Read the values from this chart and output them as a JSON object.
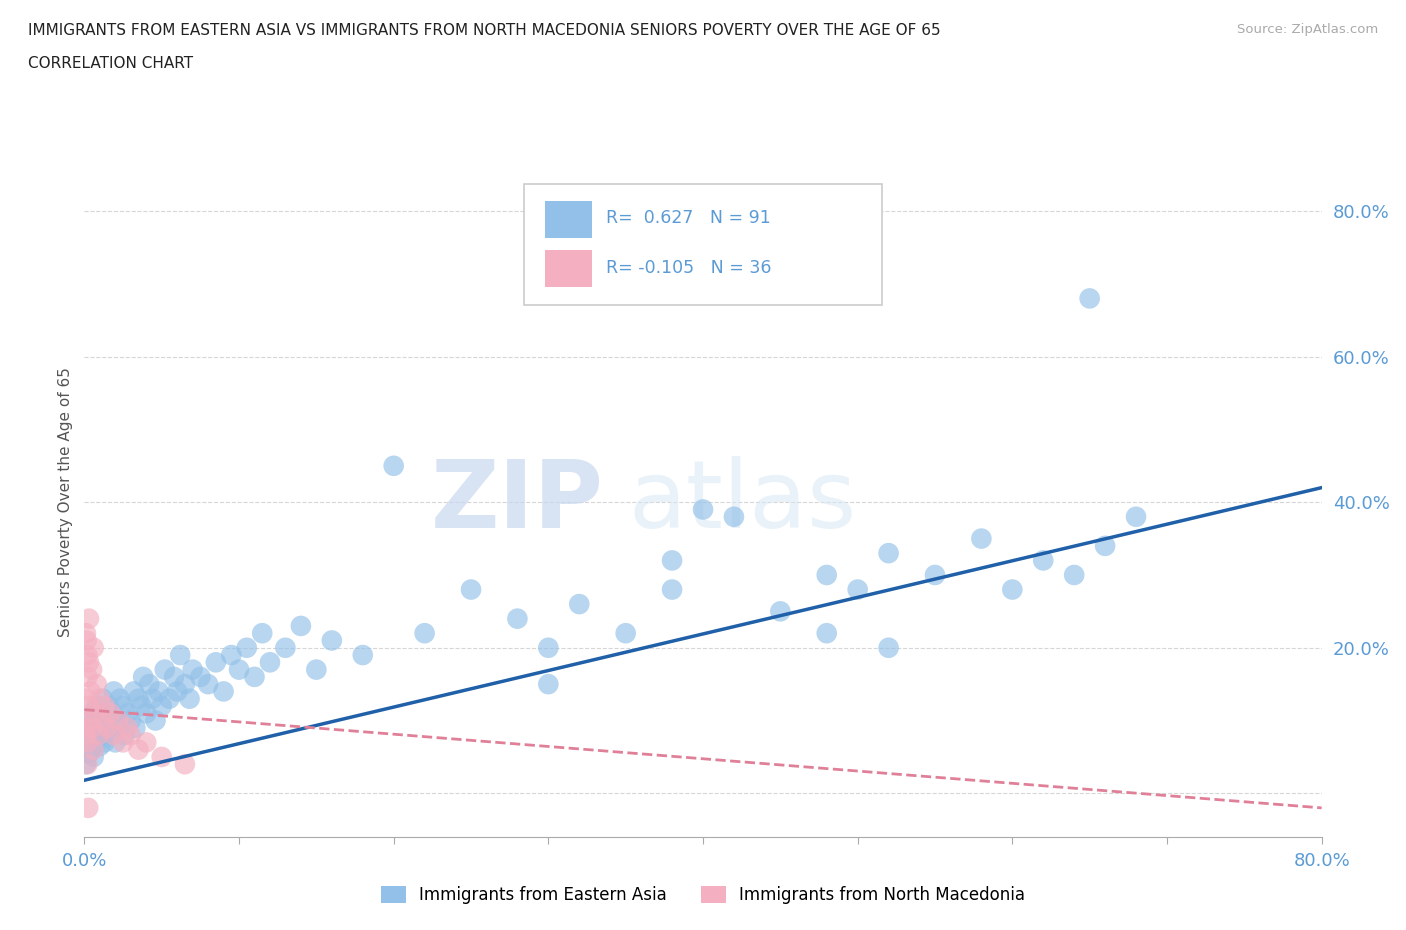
{
  "title_line1": "IMMIGRANTS FROM EASTERN ASIA VS IMMIGRANTS FROM NORTH MACEDONIA SENIORS POVERTY OVER THE AGE OF 65",
  "title_line2": "CORRELATION CHART",
  "source_text": "Source: ZipAtlas.com",
  "ylabel": "Seniors Poverty Over the Age of 65",
  "xlim": [
    0.0,
    0.8
  ],
  "ylim": [
    -0.06,
    0.86
  ],
  "blue_color": "#92c0e8",
  "pink_color": "#f4afc0",
  "blue_line_color": "#2060a8",
  "pink_line_color": "#e08098",
  "R_blue": 0.627,
  "N_blue": 91,
  "R_pink": -0.105,
  "N_pink": 36,
  "watermark_zip": "ZIP",
  "watermark_atlas": "atlas",
  "legend1": "Immigrants from Eastern Asia",
  "legend2": "Immigrants from North Macedonia",
  "blue_line_x0": 0.0,
  "blue_line_y0": 0.018,
  "blue_line_x1": 0.8,
  "blue_line_y1": 0.42,
  "pink_line_x0": 0.0,
  "pink_line_y0": 0.115,
  "pink_line_x1": 0.8,
  "pink_line_y1": -0.02,
  "blue_scatter_x": [
    0.001,
    0.002,
    0.003,
    0.004,
    0.004,
    0.005,
    0.005,
    0.006,
    0.007,
    0.008,
    0.008,
    0.009,
    0.01,
    0.01,
    0.012,
    0.012,
    0.013,
    0.014,
    0.015,
    0.016,
    0.017,
    0.018,
    0.019,
    0.02,
    0.021,
    0.022,
    0.023,
    0.025,
    0.026,
    0.028,
    0.03,
    0.032,
    0.033,
    0.035,
    0.037,
    0.038,
    0.04,
    0.042,
    0.044,
    0.046,
    0.048,
    0.05,
    0.052,
    0.055,
    0.058,
    0.06,
    0.062,
    0.065,
    0.068,
    0.07,
    0.075,
    0.08,
    0.085,
    0.09,
    0.095,
    0.1,
    0.105,
    0.11,
    0.115,
    0.12,
    0.13,
    0.14,
    0.15,
    0.16,
    0.18,
    0.2,
    0.22,
    0.25,
    0.28,
    0.3,
    0.32,
    0.35,
    0.38,
    0.4,
    0.45,
    0.48,
    0.5,
    0.52,
    0.55,
    0.58,
    0.6,
    0.62,
    0.64,
    0.66,
    0.68,
    0.52,
    0.42,
    0.38,
    0.3,
    0.65,
    0.48
  ],
  "blue_scatter_y": [
    0.04,
    0.07,
    0.055,
    0.09,
    0.06,
    0.08,
    0.11,
    0.05,
    0.1,
    0.07,
    0.12,
    0.09,
    0.065,
    0.11,
    0.08,
    0.13,
    0.07,
    0.1,
    0.09,
    0.12,
    0.08,
    0.11,
    0.14,
    0.07,
    0.1,
    0.09,
    0.13,
    0.12,
    0.08,
    0.11,
    0.1,
    0.14,
    0.09,
    0.13,
    0.12,
    0.16,
    0.11,
    0.15,
    0.13,
    0.1,
    0.14,
    0.12,
    0.17,
    0.13,
    0.16,
    0.14,
    0.19,
    0.15,
    0.13,
    0.17,
    0.16,
    0.15,
    0.18,
    0.14,
    0.19,
    0.17,
    0.2,
    0.16,
    0.22,
    0.18,
    0.2,
    0.23,
    0.17,
    0.21,
    0.19,
    0.45,
    0.22,
    0.28,
    0.24,
    0.2,
    0.26,
    0.22,
    0.28,
    0.39,
    0.25,
    0.3,
    0.28,
    0.33,
    0.3,
    0.35,
    0.28,
    0.32,
    0.3,
    0.34,
    0.38,
    0.2,
    0.38,
    0.32,
    0.15,
    0.68,
    0.22
  ],
  "pink_scatter_x": [
    0.0005,
    0.001,
    0.001,
    0.002,
    0.002,
    0.003,
    0.003,
    0.004,
    0.004,
    0.005,
    0.005,
    0.006,
    0.006,
    0.007,
    0.008,
    0.009,
    0.01,
    0.012,
    0.013,
    0.015,
    0.017,
    0.019,
    0.022,
    0.025,
    0.028,
    0.03,
    0.035,
    0.04,
    0.05,
    0.065,
    0.001,
    0.002,
    0.003,
    0.0015,
    0.002,
    0.0025
  ],
  "pink_scatter_y": [
    0.09,
    0.13,
    0.08,
    0.16,
    0.07,
    0.12,
    0.18,
    0.1,
    0.14,
    0.09,
    0.17,
    0.06,
    0.2,
    0.11,
    0.15,
    0.08,
    0.13,
    0.1,
    0.12,
    0.09,
    0.11,
    0.08,
    0.1,
    0.07,
    0.09,
    0.08,
    0.06,
    0.07,
    0.05,
    0.04,
    0.22,
    0.19,
    0.24,
    0.21,
    0.04,
    -0.02
  ]
}
